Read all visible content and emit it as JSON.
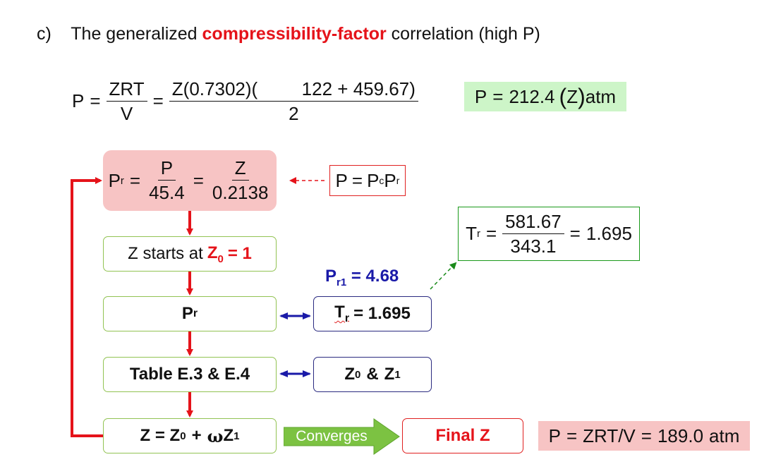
{
  "heading": {
    "label": "c)",
    "text_before": "The generalized",
    "highlight": "compressibility-factor",
    "text_after": "correlation (high P)"
  },
  "pressure_eq": {
    "lhs": "P",
    "frac1_num": "ZRT",
    "frac1_den": "V",
    "frac2_num_a": "Z(0.7302)(",
    "frac2_num_b": "122",
    "frac2_num_plus": "+",
    "frac2_num_c": "459.67)",
    "frac2_den": "2"
  },
  "pressure_result": {
    "lhs": "P",
    "value": "212.4",
    "z": "Z",
    "unit": "atm"
  },
  "pr_box": {
    "lhs": "P",
    "lhs_sub": "r",
    "frac1_num": "P",
    "frac1_den": "45.4",
    "frac2_num": "Z",
    "frac2_den": "0.2138"
  },
  "p_pc_pr": {
    "lhs": "P",
    "rhs_a": "P",
    "rhs_a_sub": "c",
    "rhs_b": "P",
    "rhs_b_sub": "r"
  },
  "tr_eq": {
    "lhs": "T",
    "lhs_sub": "r",
    "num": "581.67",
    "den": "343.1",
    "result": "1.695"
  },
  "z_start": {
    "text": "Z starts at",
    "z": "Z",
    "z_sub": "0",
    "tail": "= 1"
  },
  "pr1": {
    "p": "P",
    "sub": "r1",
    "value": "= 4.68"
  },
  "pr_node": {
    "p": "P",
    "sub": "r"
  },
  "tr_node": {
    "t": "T",
    "sub": "r",
    "value": "= 1.695"
  },
  "table_node": {
    "text": "Table E.3 & E.4"
  },
  "z0z1_node": {
    "z0": "Z",
    "z0_sup": "0",
    "amp": "&",
    "z1": "Z",
    "z1_sup": "1"
  },
  "z_eq_node": {
    "z": "Z = Z",
    "sup0": "0",
    "plus": "+",
    "omega": "ω",
    "z1": "Z",
    "sup1": "1"
  },
  "converges_label": "Converges",
  "final_z": "Final Z",
  "final_eq": {
    "lhs": "P",
    "mid": "ZRT/V",
    "value": "189.0",
    "unit": "atm"
  },
  "colors": {
    "accent_red": "#e5131a",
    "navy": "#1a1aa8",
    "green_border": "#92c353",
    "pink_fill": "#f7c4c4",
    "light_green_fill": "#cdf5c8",
    "arrow_green": "#7cc242"
  }
}
